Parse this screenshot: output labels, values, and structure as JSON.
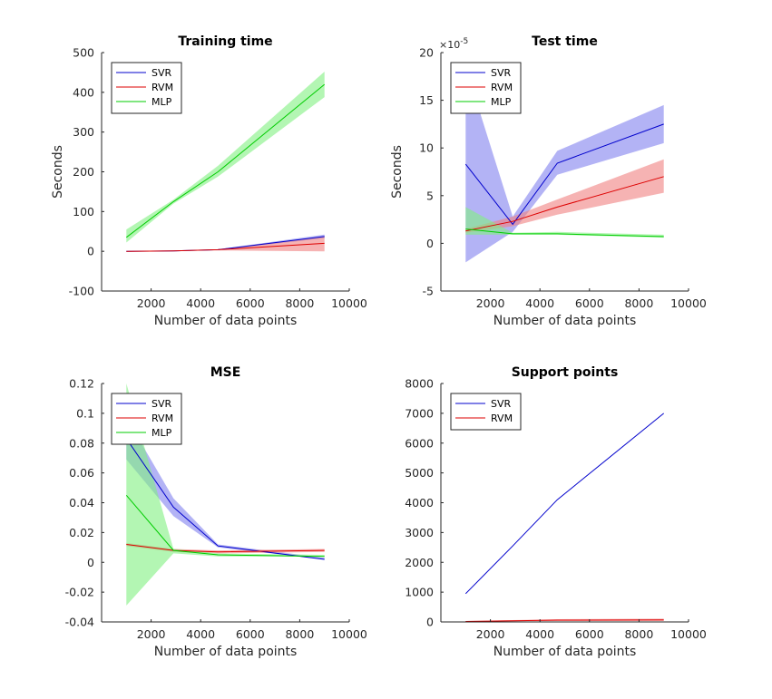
{
  "chart_data": [
    {
      "type": "line",
      "title": "Training time",
      "xlabel": "Number of data points",
      "ylabel": "Seconds",
      "exponent": "",
      "xlim": [
        0,
        10000
      ],
      "ylim": [
        -100,
        500
      ],
      "xticks": [
        2000,
        4000,
        6000,
        8000,
        10000
      ],
      "yticks": [
        -100,
        0,
        100,
        200,
        300,
        400,
        500
      ],
      "ytick_labels": [
        "-100",
        "0",
        "100",
        "200",
        "300",
        "400",
        "500"
      ],
      "legend": "top-left",
      "grid": false,
      "x": [
        1000,
        2900,
        4700,
        9000
      ],
      "series": [
        {
          "name": "SVR",
          "color": "#0000cc",
          "band": "#8080ee",
          "values": [
            0,
            1,
            4,
            37
          ],
          "lower": [
            0,
            1,
            3,
            33
          ],
          "upper": [
            0,
            1,
            5,
            42
          ]
        },
        {
          "name": "RVM",
          "color": "#dd0000",
          "band": "#f08080",
          "values": [
            0,
            1,
            4,
            20
          ],
          "lower": [
            0,
            1,
            2,
            0
          ],
          "upper": [
            0,
            1,
            5,
            38
          ]
        },
        {
          "name": "MLP",
          "color": "#00cc00",
          "band": "#80f080",
          "values": [
            35,
            125,
            200,
            420
          ],
          "lower": [
            22,
            120,
            188,
            388
          ],
          "upper": [
            55,
            130,
            215,
            452
          ]
        }
      ]
    },
    {
      "type": "line",
      "title": "Test time",
      "xlabel": "Number of data points",
      "ylabel": "Seconds",
      "exponent": "-5",
      "xlim": [
        0,
        10000
      ],
      "ylim": [
        -5,
        20
      ],
      "xticks": [
        2000,
        4000,
        6000,
        8000,
        10000
      ],
      "yticks": [
        -5,
        0,
        5,
        10,
        15,
        20
      ],
      "ytick_labels": [
        "-5",
        "0",
        "5",
        "10",
        "15",
        "20"
      ],
      "legend": "top-left",
      "grid": false,
      "x": [
        1000,
        2900,
        4700,
        9000
      ],
      "series": [
        {
          "name": "SVR",
          "color": "#0000cc",
          "band": "#8080ee",
          "values": [
            8.3,
            2.0,
            8.4,
            12.5
          ],
          "lower": [
            -2.0,
            1.2,
            7.2,
            10.5
          ],
          "upper": [
            18.5,
            2.8,
            9.7,
            14.5
          ]
        },
        {
          "name": "RVM",
          "color": "#dd0000",
          "band": "#f08080",
          "values": [
            1.3,
            2.3,
            3.8,
            7.0
          ],
          "lower": [
            1.1,
            1.8,
            3.0,
            5.3
          ],
          "upper": [
            1.5,
            2.8,
            4.6,
            8.8
          ]
        },
        {
          "name": "MLP",
          "color": "#00cc00",
          "band": "#80f080",
          "values": [
            1.5,
            1.0,
            1.0,
            0.7
          ],
          "lower": [
            0.9,
            0.9,
            0.9,
            0.6
          ],
          "upper": [
            3.8,
            1.1,
            1.2,
            0.9
          ]
        }
      ]
    },
    {
      "type": "line",
      "title": "MSE",
      "xlabel": "Number of data points",
      "ylabel": "",
      "exponent": "",
      "xlim": [
        0,
        10000
      ],
      "ylim": [
        -0.04,
        0.12
      ],
      "xticks": [
        2000,
        4000,
        6000,
        8000,
        10000
      ],
      "yticks": [
        -0.04,
        -0.02,
        0,
        0.02,
        0.04,
        0.06,
        0.08,
        0.1,
        0.12
      ],
      "ytick_labels": [
        "-0.04",
        "-0.02",
        "0",
        "0.02",
        "0.04",
        "0.06",
        "0.08",
        "0.1",
        "0.12"
      ],
      "legend": "top-left",
      "grid": false,
      "x": [
        1000,
        2900,
        4700,
        9000
      ],
      "series": [
        {
          "name": "SVR",
          "color": "#0000cc",
          "band": "#8080ee",
          "values": [
            0.083,
            0.037,
            0.011,
            0.002
          ],
          "lower": [
            0.069,
            0.031,
            0.01,
            0.002
          ],
          "upper": [
            0.097,
            0.043,
            0.012,
            0.003
          ]
        },
        {
          "name": "RVM",
          "color": "#dd0000",
          "band": "#f08080",
          "values": [
            0.012,
            0.008,
            0.007,
            0.008
          ],
          "lower": [
            0.011,
            0.007,
            0.006,
            0.007
          ],
          "upper": [
            0.013,
            0.009,
            0.008,
            0.009
          ]
        },
        {
          "name": "MLP",
          "color": "#00cc00",
          "band": "#80f080",
          "values": [
            0.045,
            0.008,
            0.005,
            0.004
          ],
          "lower": [
            -0.029,
            0.006,
            0.004,
            0.004
          ],
          "upper": [
            0.12,
            0.009,
            0.006,
            0.005
          ]
        }
      ]
    },
    {
      "type": "line",
      "title": "Support points",
      "xlabel": "Number of data points",
      "ylabel": "",
      "exponent": "",
      "xlim": [
        0,
        10000
      ],
      "ylim": [
        0,
        8000
      ],
      "xticks": [
        2000,
        4000,
        6000,
        8000,
        10000
      ],
      "yticks": [
        0,
        1000,
        2000,
        3000,
        4000,
        5000,
        6000,
        7000,
        8000
      ],
      "ytick_labels": [
        "0",
        "1000",
        "2000",
        "3000",
        "4000",
        "5000",
        "6000",
        "7000",
        "8000"
      ],
      "legend": "top-left",
      "grid": false,
      "x": [
        1000,
        2900,
        4700,
        9000
      ],
      "series": [
        {
          "name": "SVR",
          "color": "#0000cc",
          "band": "#8080ee",
          "values": [
            950,
            2550,
            4100,
            7000
          ],
          "lower": [
            950,
            2550,
            4100,
            7000
          ],
          "upper": [
            950,
            2550,
            4100,
            7000
          ]
        },
        {
          "name": "RVM",
          "color": "#dd0000",
          "band": "#f08080",
          "values": [
            15,
            40,
            60,
            70
          ],
          "lower": [
            5,
            20,
            30,
            30
          ],
          "upper": [
            30,
            60,
            90,
            110
          ]
        }
      ]
    }
  ]
}
